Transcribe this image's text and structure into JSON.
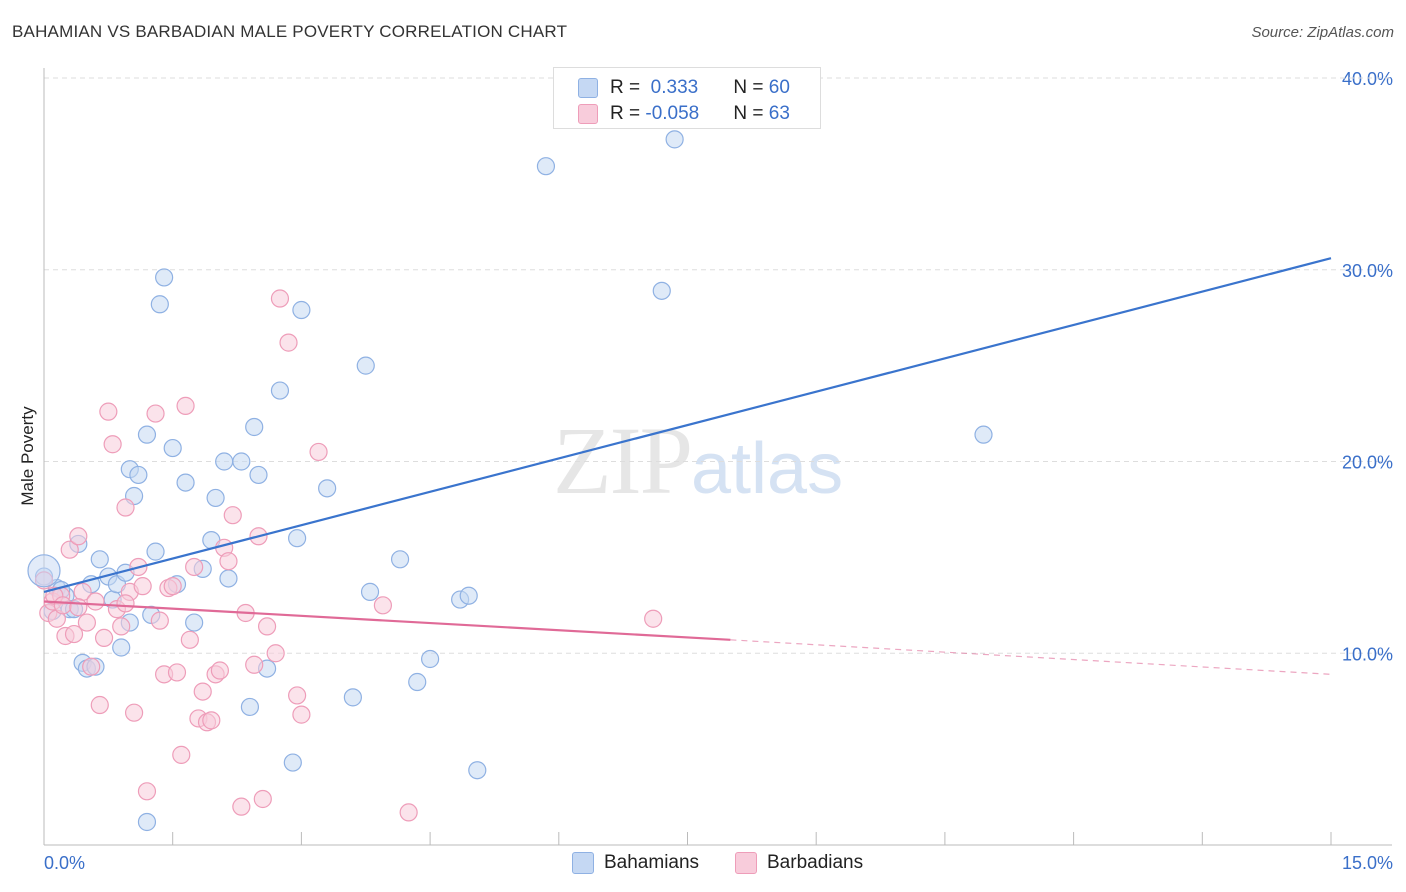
{
  "header": {
    "title": "BAHAMIAN VS BARBADIAN MALE POVERTY CORRELATION CHART",
    "source": "Source: ZipAtlas.com"
  },
  "watermark": {
    "zip": "ZIP",
    "atlas": "atlas"
  },
  "legend": {
    "rows": [
      {
        "r_label": "R = ",
        "r_value": " 0.333",
        "n_label": "N = ",
        "n_value": "60"
      },
      {
        "r_label": "R = ",
        "r_value": "-0.058",
        "n_label": "N = ",
        "n_value": "63"
      }
    ],
    "bottom": [
      "Bahamians",
      "Barbadians"
    ]
  },
  "colors": {
    "blue_fill": "#c5d8f3",
    "blue_stroke": "#8fb1e3",
    "blue_line": "#3a74cd",
    "pink_fill": "#f8ccdb",
    "pink_stroke": "#ee9db9",
    "pink_line": "#e06a97",
    "tick_label": "#3a6fc9",
    "grid": "#dddddd"
  },
  "chart_data": {
    "type": "scatter",
    "title": "BAHAMIAN VS BARBADIAN MALE POVERTY CORRELATION CHART",
    "xlabel": "",
    "ylabel": "Male Poverty",
    "xlim": [
      0,
      15
    ],
    "ylim": [
      0,
      40
    ],
    "x_tick_labels": [
      "0.0%",
      "15.0%"
    ],
    "y_ticks": [
      10,
      20,
      30,
      40
    ],
    "y_tick_labels": [
      "10.0%",
      "20.0%",
      "30.0%",
      "40.0%"
    ],
    "grid": true,
    "series": [
      {
        "name": "Bahamians",
        "r": 0.333,
        "n": 60,
        "trend": {
          "x": [
            0,
            15
          ],
          "y": [
            13.2,
            30.6
          ]
        },
        "points": [
          [
            0.0,
            14.0
          ],
          [
            0.15,
            13.4
          ],
          [
            0.25,
            13.0
          ],
          [
            0.3,
            12.3
          ],
          [
            0.4,
            15.7
          ],
          [
            0.45,
            9.5
          ],
          [
            0.5,
            9.2
          ],
          [
            0.55,
            13.6
          ],
          [
            0.65,
            14.9
          ],
          [
            0.75,
            14.0
          ],
          [
            0.8,
            12.8
          ],
          [
            0.85,
            13.6
          ],
          [
            0.9,
            10.3
          ],
          [
            0.95,
            14.2
          ],
          [
            1.0,
            19.6
          ],
          [
            1.05,
            18.2
          ],
          [
            1.1,
            19.3
          ],
          [
            1.2,
            21.4
          ],
          [
            1.25,
            12.0
          ],
          [
            1.3,
            15.3
          ],
          [
            1.35,
            28.2
          ],
          [
            1.4,
            29.6
          ],
          [
            1.5,
            20.7
          ],
          [
            1.55,
            13.6
          ],
          [
            1.65,
            18.9
          ],
          [
            1.75,
            11.6
          ],
          [
            1.85,
            14.4
          ],
          [
            1.95,
            15.9
          ],
          [
            2.0,
            18.1
          ],
          [
            2.1,
            20.0
          ],
          [
            2.15,
            13.9
          ],
          [
            2.3,
            20.0
          ],
          [
            2.4,
            7.2
          ],
          [
            2.45,
            21.8
          ],
          [
            2.5,
            19.3
          ],
          [
            2.6,
            9.2
          ],
          [
            2.75,
            23.7
          ],
          [
            2.9,
            4.3
          ],
          [
            2.95,
            16.0
          ],
          [
            3.0,
            27.9
          ],
          [
            3.3,
            18.6
          ],
          [
            3.6,
            7.7
          ],
          [
            3.75,
            25.0
          ],
          [
            3.8,
            13.2
          ],
          [
            4.15,
            14.9
          ],
          [
            4.35,
            8.5
          ],
          [
            4.5,
            9.7
          ],
          [
            4.85,
            12.8
          ],
          [
            4.95,
            13.0
          ],
          [
            5.05,
            3.9
          ],
          [
            5.85,
            35.4
          ],
          [
            7.2,
            28.9
          ],
          [
            7.35,
            36.8
          ],
          [
            10.95,
            21.4
          ],
          [
            1.2,
            1.2
          ],
          [
            0.2,
            13.3
          ],
          [
            0.1,
            12.2
          ],
          [
            0.35,
            12.3
          ],
          [
            0.6,
            9.3
          ],
          [
            1.0,
            11.6
          ]
        ]
      },
      {
        "name": "Barbadians",
        "r": -0.058,
        "n": 63,
        "trend": {
          "x": [
            0,
            8.0
          ],
          "y": [
            12.7,
            10.7
          ]
        },
        "trend_dashed": {
          "x": [
            8.0,
            15
          ],
          "y": [
            10.7,
            8.9
          ]
        },
        "points": [
          [
            0.0,
            13.8
          ],
          [
            0.05,
            12.1
          ],
          [
            0.1,
            12.7
          ],
          [
            0.15,
            11.8
          ],
          [
            0.2,
            13.0
          ],
          [
            0.25,
            10.9
          ],
          [
            0.3,
            15.4
          ],
          [
            0.35,
            11.0
          ],
          [
            0.4,
            16.1
          ],
          [
            0.45,
            13.2
          ],
          [
            0.5,
            11.6
          ],
          [
            0.55,
            9.3
          ],
          [
            0.6,
            12.7
          ],
          [
            0.65,
            7.3
          ],
          [
            0.7,
            10.8
          ],
          [
            0.75,
            22.6
          ],
          [
            0.8,
            20.9
          ],
          [
            0.85,
            12.3
          ],
          [
            0.9,
            11.4
          ],
          [
            0.95,
            17.6
          ],
          [
            1.0,
            13.2
          ],
          [
            1.05,
            6.9
          ],
          [
            1.1,
            14.5
          ],
          [
            1.15,
            13.5
          ],
          [
            1.2,
            2.8
          ],
          [
            1.3,
            22.5
          ],
          [
            1.35,
            11.7
          ],
          [
            1.4,
            8.9
          ],
          [
            1.45,
            13.4
          ],
          [
            1.5,
            13.5
          ],
          [
            1.55,
            9.0
          ],
          [
            1.6,
            4.7
          ],
          [
            1.65,
            22.9
          ],
          [
            1.7,
            10.7
          ],
          [
            1.75,
            14.5
          ],
          [
            1.8,
            6.6
          ],
          [
            1.85,
            8.0
          ],
          [
            1.9,
            6.4
          ],
          [
            1.95,
            6.5
          ],
          [
            2.0,
            8.9
          ],
          [
            2.05,
            9.1
          ],
          [
            2.1,
            15.5
          ],
          [
            2.15,
            14.8
          ],
          [
            2.2,
            17.2
          ],
          [
            2.3,
            2.0
          ],
          [
            2.35,
            12.1
          ],
          [
            2.45,
            9.4
          ],
          [
            2.5,
            16.1
          ],
          [
            2.55,
            2.4
          ],
          [
            2.6,
            11.4
          ],
          [
            2.7,
            10.0
          ],
          [
            2.75,
            28.5
          ],
          [
            2.85,
            26.2
          ],
          [
            2.95,
            7.8
          ],
          [
            3.0,
            6.8
          ],
          [
            3.2,
            20.5
          ],
          [
            3.95,
            12.5
          ],
          [
            4.25,
            1.7
          ],
          [
            7.1,
            11.8
          ],
          [
            0.12,
            13.0
          ],
          [
            0.22,
            12.5
          ],
          [
            0.4,
            12.4
          ],
          [
            0.95,
            12.6
          ]
        ]
      }
    ]
  }
}
